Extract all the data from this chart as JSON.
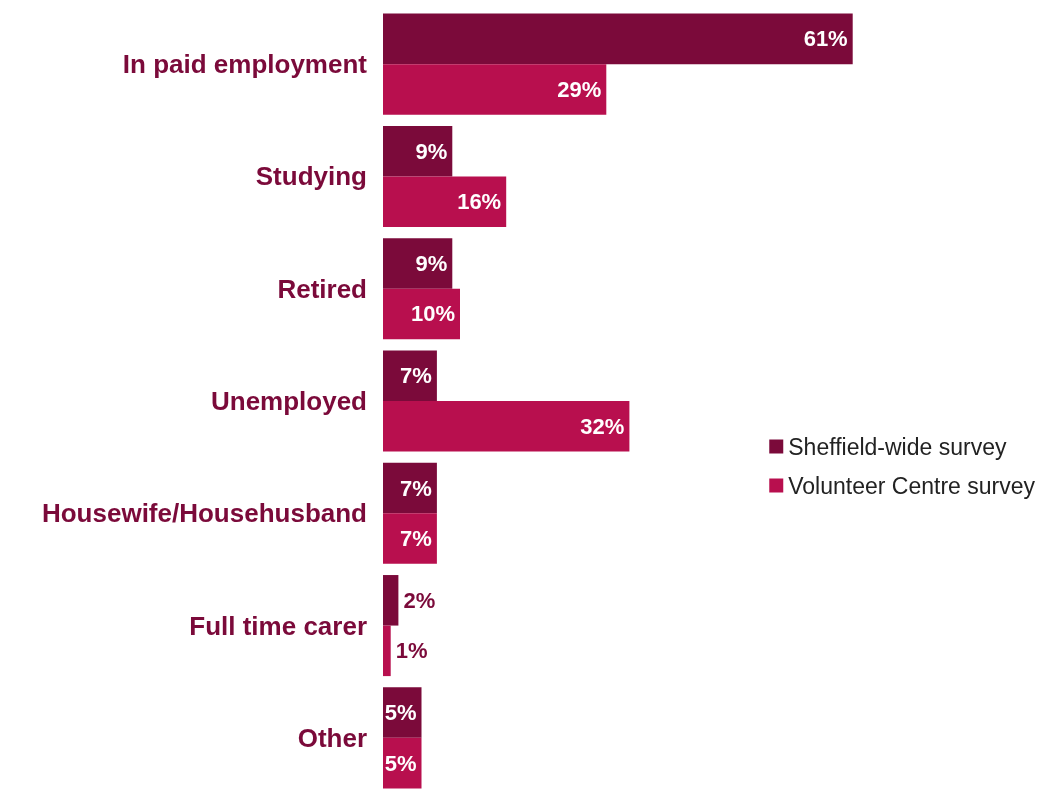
{
  "chart_data": {
    "type": "bar",
    "orientation": "horizontal",
    "categories": [
      "In paid employment",
      "Studying",
      "Retired",
      "Unemployed",
      "Housewife/Househusband",
      "Full time carer",
      "Other"
    ],
    "series": [
      {
        "name": "Sheffield-wide survey",
        "color": "#7b0a3a",
        "values": [
          61,
          9,
          9,
          7,
          7,
          2,
          5
        ],
        "value_labels": [
          "61%",
          "9%",
          "9%",
          "7%",
          "7%",
          "2%",
          "5%"
        ]
      },
      {
        "name": "Volunteer Centre survey",
        "color": "#b80f4e",
        "values": [
          29,
          16,
          10,
          32,
          7,
          1,
          5
        ],
        "value_labels": [
          "29%",
          "16%",
          "10%",
          "32%",
          "7%",
          "1%",
          "5%"
        ]
      }
    ],
    "legend": "right"
  }
}
